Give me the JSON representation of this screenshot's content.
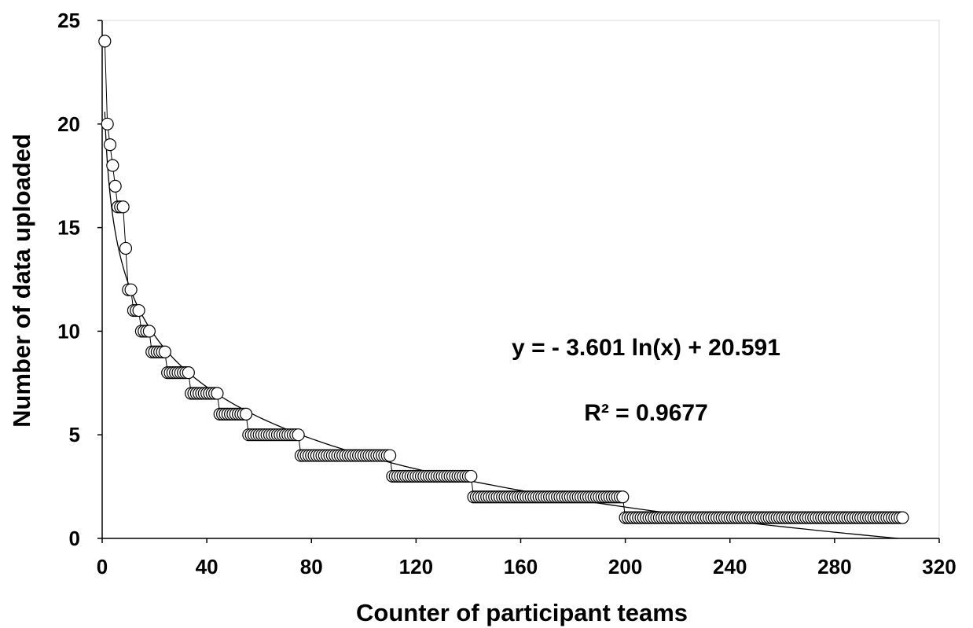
{
  "chart_data": {
    "type": "scatter",
    "xlabel": "Counter of participant teams",
    "ylabel": "Number of data uploaded",
    "xlim": [
      0,
      320
    ],
    "ylim": [
      0,
      25
    ],
    "x_ticks": [
      "0",
      "40",
      "80",
      "120",
      "160",
      "200",
      "240",
      "280",
      "320"
    ],
    "y_ticks": [
      "0",
      "5",
      "10",
      "15",
      "20",
      "25"
    ],
    "grid": false,
    "legend": "none",
    "trendline": {
      "type": "logarithmic",
      "a": -3.601,
      "b": 20.591,
      "equation": "y = - 3.601 ln(x) + 20.591",
      "r2_label": "R² = 0.9677"
    },
    "runs": [
      {
        "from": 1,
        "to": 1,
        "y": 24
      },
      {
        "from": 2,
        "to": 2,
        "y": 20
      },
      {
        "from": 3,
        "to": 3,
        "y": 19
      },
      {
        "from": 4,
        "to": 4,
        "y": 18
      },
      {
        "from": 5,
        "to": 5,
        "y": 17
      },
      {
        "from": 6,
        "to": 8,
        "y": 16
      },
      {
        "from": 9,
        "to": 9,
        "y": 14
      },
      {
        "from": 10,
        "to": 11,
        "y": 12
      },
      {
        "from": 12,
        "to": 14,
        "y": 11
      },
      {
        "from": 15,
        "to": 18,
        "y": 10
      },
      {
        "from": 19,
        "to": 24,
        "y": 9
      },
      {
        "from": 25,
        "to": 33,
        "y": 8
      },
      {
        "from": 34,
        "to": 44,
        "y": 7
      },
      {
        "from": 45,
        "to": 55,
        "y": 6
      },
      {
        "from": 56,
        "to": 75,
        "y": 5
      },
      {
        "from": 76,
        "to": 110,
        "y": 4
      },
      {
        "from": 111,
        "to": 141,
        "y": 3
      },
      {
        "from": 142,
        "to": 199,
        "y": 2
      },
      {
        "from": 200,
        "to": 306,
        "y": 1
      }
    ]
  }
}
